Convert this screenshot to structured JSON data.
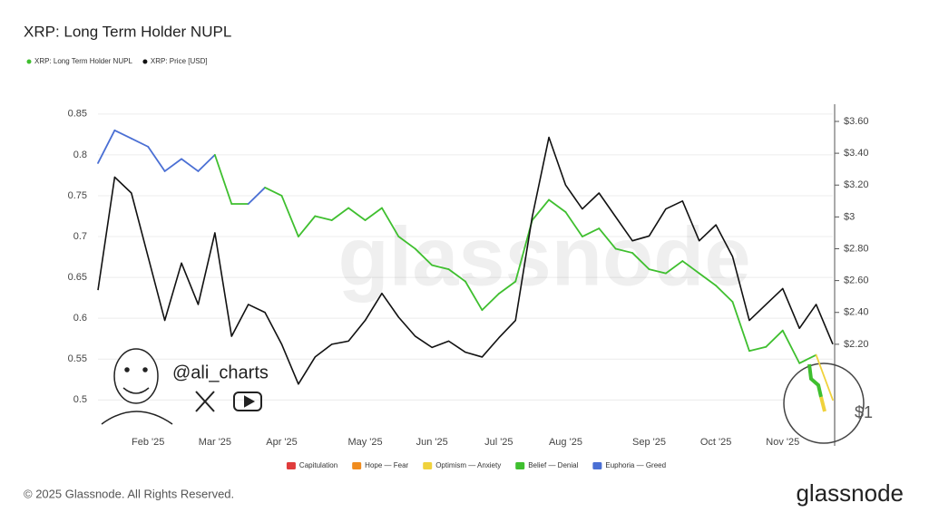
{
  "chart_data": {
    "type": "line",
    "title": "XRP: Long Term Holder NUPL",
    "watermark": "glassnode",
    "handle": "@ali_charts",
    "inset_label": "$1",
    "footer": "© 2025 Glassnode. All Rights Reserved.",
    "brand": "glassnode",
    "categories": [
      null,
      null,
      null,
      "Feb '25",
      null,
      null,
      null,
      "Mar '25",
      null,
      null,
      null,
      "Apr '25",
      null,
      null,
      null,
      null,
      "May '25",
      null,
      null,
      null,
      "Jun '25",
      null,
      null,
      null,
      "Jul '25",
      null,
      null,
      null,
      "Aug '25",
      null,
      null,
      null,
      null,
      "Sep '25",
      null,
      null,
      null,
      "Oct '25",
      null,
      null,
      null,
      "Nov '25",
      null,
      null,
      null
    ],
    "series": [
      {
        "name": "XRP: Long Term Holder NUPL",
        "color": "#3fbf2f",
        "values": [
          0.79,
          0.83,
          0.82,
          0.81,
          0.78,
          0.795,
          0.78,
          0.8,
          0.74,
          0.74,
          0.76,
          0.75,
          0.7,
          0.725,
          0.72,
          0.735,
          0.72,
          0.735,
          0.7,
          0.685,
          0.665,
          0.66,
          0.645,
          0.61,
          0.63,
          0.645,
          0.72,
          0.745,
          0.73,
          0.7,
          0.71,
          0.685,
          0.68,
          0.66,
          0.655,
          0.67,
          0.655,
          0.64,
          0.62,
          0.56,
          0.565,
          0.585,
          0.545,
          0.555,
          0.5
        ],
        "point_colors": [
          "#4a6fd4",
          "#4a6fd4",
          "#4a6fd4",
          "#4a6fd4",
          "#4a6fd4",
          "#4a6fd4",
          "#4a6fd4",
          "#4a6fd4",
          "#3fbf2f",
          "#3fbf2f",
          "#4a6fd4",
          "#3fbf2f",
          "#3fbf2f",
          "#3fbf2f",
          "#3fbf2f",
          "#3fbf2f",
          "#3fbf2f",
          "#3fbf2f",
          "#3fbf2f",
          "#3fbf2f",
          "#3fbf2f",
          "#3fbf2f",
          "#3fbf2f",
          "#3fbf2f",
          "#3fbf2f",
          "#3fbf2f",
          "#3fbf2f",
          "#3fbf2f",
          "#3fbf2f",
          "#3fbf2f",
          "#3fbf2f",
          "#3fbf2f",
          "#3fbf2f",
          "#3fbf2f",
          "#3fbf2f",
          "#3fbf2f",
          "#3fbf2f",
          "#3fbf2f",
          "#3fbf2f",
          "#3fbf2f",
          "#3fbf2f",
          "#3fbf2f",
          "#3fbf2f",
          "#3fbf2f",
          "#f0d23c"
        ]
      },
      {
        "name": "XRP: Price [USD]",
        "color": "#111111",
        "axis": "y2",
        "values": [
          2.54,
          3.25,
          3.15,
          2.75,
          2.35,
          2.71,
          2.45,
          2.9,
          2.25,
          2.45,
          2.4,
          2.2,
          1.95,
          2.12,
          2.2,
          2.22,
          2.35,
          2.52,
          2.37,
          2.25,
          2.18,
          2.22,
          2.15,
          2.12,
          2.24,
          2.35,
          3.0,
          3.5,
          3.2,
          3.05,
          3.15,
          3.0,
          2.85,
          2.88,
          3.05,
          3.1,
          2.85,
          2.95,
          2.75,
          2.35,
          2.45,
          2.55,
          2.3,
          2.45,
          2.2
        ]
      }
    ],
    "ylim": [
      0.446,
      0.862
    ],
    "yticks": [
      0.5,
      0.55,
      0.6,
      0.65,
      0.7,
      0.75,
      0.8,
      0.85
    ],
    "y2lim": [
      1.573,
      3.708
    ],
    "y2ticks": [
      {
        "value": 2.2,
        "label": "$2.20"
      },
      {
        "value": 2.4,
        "label": "$2.40"
      },
      {
        "value": 2.6,
        "label": "$2.60"
      },
      {
        "value": 2.8,
        "label": "$2.80"
      },
      {
        "value": 3,
        "label": "$3"
      },
      {
        "value": 3.2,
        "label": "$3.20"
      },
      {
        "value": 3.4,
        "label": "$3.40"
      },
      {
        "value": 3.6,
        "label": "$3.60"
      }
    ],
    "grid": true,
    "zones": [
      {
        "name": "Capitulation",
        "color": "#e03c3c"
      },
      {
        "name": "Hope — Fear",
        "color": "#f08c1e"
      },
      {
        "name": "Optimism — Anxiety",
        "color": "#f0d23c"
      },
      {
        "name": "Belief — Denial",
        "color": "#3fbf2f"
      },
      {
        "name": "Euphoria — Greed",
        "color": "#4a6fd4"
      }
    ]
  }
}
